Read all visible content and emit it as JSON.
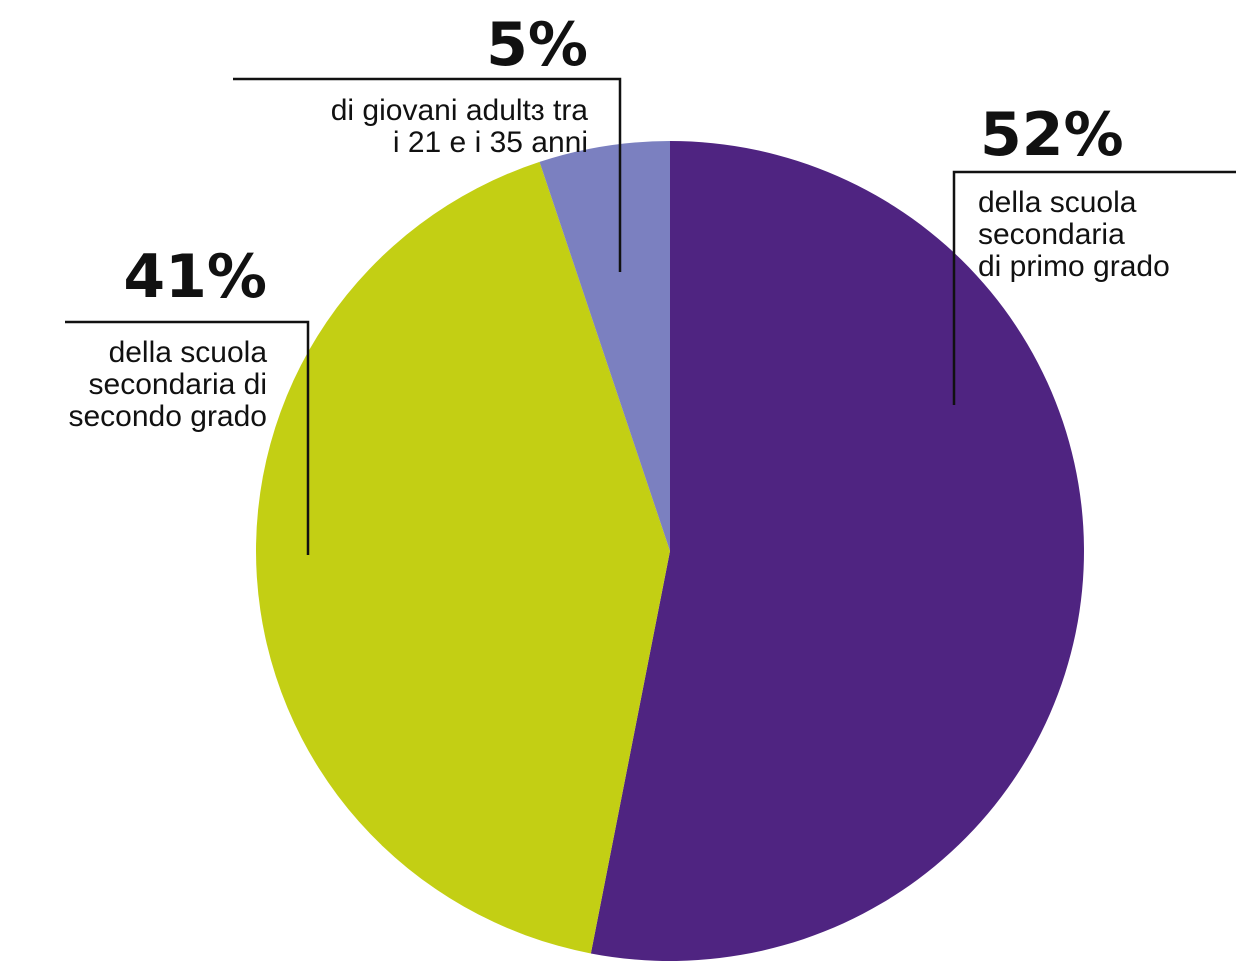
{
  "chart_data": {
    "type": "pie",
    "slices": [
      {
        "id": "primo",
        "value": 52,
        "percent_label": "52%",
        "description": [
          "della scuola",
          "secondaria",
          "di primo grado"
        ],
        "color": "#4f2481"
      },
      {
        "id": "secondo",
        "value": 41,
        "percent_label": "41%",
        "description": [
          "della scuola",
          "secondaria di",
          "secondo grado"
        ],
        "color": "#c3cf14"
      },
      {
        "id": "adulti",
        "value": 5,
        "percent_label": "5%",
        "description": [
          "di giovani adultɜ tra",
          "i 21 e i 35 anni"
        ],
        "color": "#7b80c0"
      }
    ]
  }
}
